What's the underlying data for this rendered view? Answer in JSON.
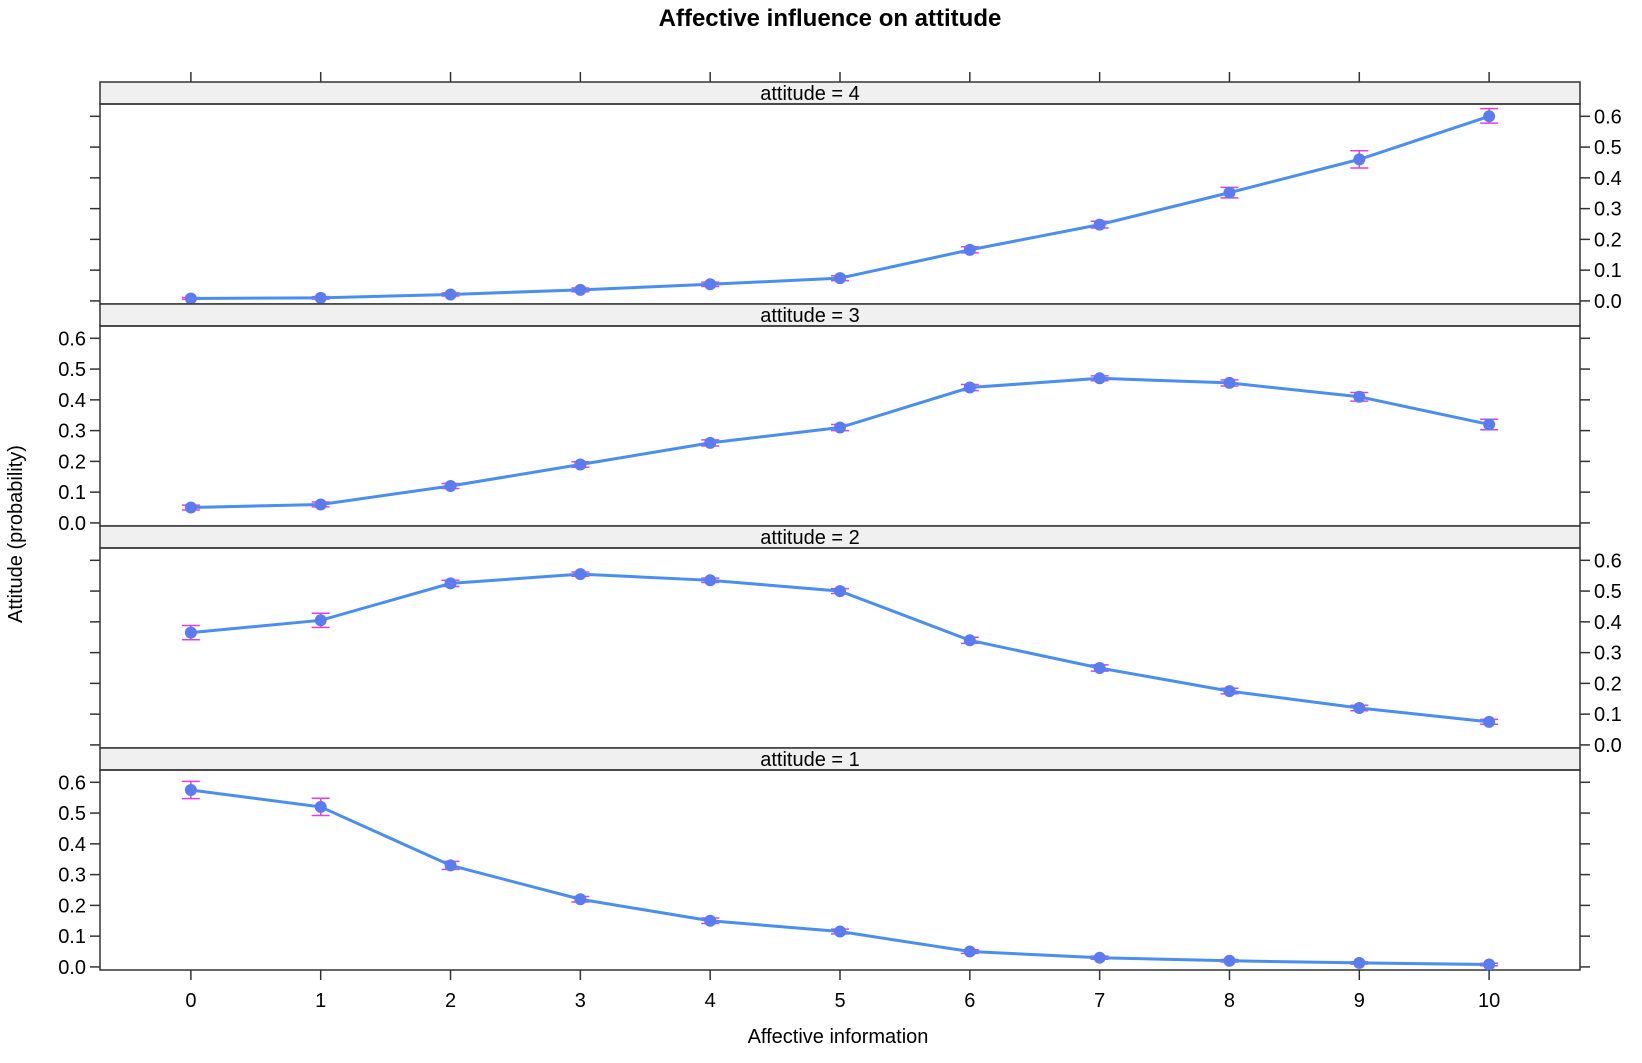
{
  "chart_data": {
    "type": "line",
    "title": "Affective influence on attitude",
    "xlabel": "Affective information",
    "ylabel": "Attitude (probability)",
    "x": [
      0,
      1,
      2,
      3,
      4,
      5,
      6,
      7,
      8,
      9,
      10
    ],
    "x_tick_labels": [
      "0",
      "1",
      "2",
      "3",
      "4",
      "5",
      "6",
      "7",
      "8",
      "9",
      "10"
    ],
    "xlim": [
      -0.7,
      10.7
    ],
    "ylim": [
      -0.01,
      0.64
    ],
    "y_ticks": [
      0.0,
      0.1,
      0.2,
      0.3,
      0.4,
      0.5,
      0.6
    ],
    "y_tick_labels": [
      "0.0",
      "0.1",
      "0.2",
      "0.3",
      "0.4",
      "0.5",
      "0.6"
    ],
    "grid": false,
    "colors": {
      "line": "#4a8ef0",
      "point": "#5a7cf0",
      "error_bar": "#e040e0",
      "strip_bg": "#f0f0f0",
      "frame": "#333333"
    },
    "panels": [
      {
        "label": "attitude = 4",
        "y_axis_side": "right",
        "values": [
          0.008,
          0.01,
          0.021,
          0.036,
          0.054,
          0.074,
          0.166,
          0.248,
          0.352,
          0.46,
          0.6
        ],
        "lower": [
          0.005,
          0.006,
          0.016,
          0.03,
          0.047,
          0.066,
          0.156,
          0.237,
          0.335,
          0.432,
          0.578
        ],
        "upper": [
          0.011,
          0.014,
          0.026,
          0.042,
          0.061,
          0.082,
          0.176,
          0.259,
          0.369,
          0.488,
          0.625
        ]
      },
      {
        "label": "attitude = 3",
        "y_axis_side": "left",
        "values": [
          0.05,
          0.06,
          0.12,
          0.19,
          0.26,
          0.31,
          0.44,
          0.47,
          0.455,
          0.41,
          0.32
        ],
        "lower": [
          0.042,
          0.052,
          0.112,
          0.181,
          0.25,
          0.3,
          0.43,
          0.462,
          0.445,
          0.396,
          0.303
        ],
        "upper": [
          0.058,
          0.068,
          0.128,
          0.199,
          0.27,
          0.32,
          0.45,
          0.478,
          0.465,
          0.424,
          0.337
        ]
      },
      {
        "label": "attitude = 2",
        "y_axis_side": "right",
        "values": [
          0.365,
          0.405,
          0.525,
          0.555,
          0.535,
          0.5,
          0.34,
          0.25,
          0.175,
          0.12,
          0.075
        ],
        "lower": [
          0.342,
          0.382,
          0.515,
          0.548,
          0.528,
          0.492,
          0.33,
          0.24,
          0.166,
          0.111,
          0.067
        ],
        "upper": [
          0.388,
          0.428,
          0.535,
          0.562,
          0.542,
          0.508,
          0.35,
          0.26,
          0.184,
          0.129,
          0.083
        ]
      },
      {
        "label": "attitude = 1",
        "y_axis_side": "left",
        "values": [
          0.575,
          0.52,
          0.33,
          0.22,
          0.15,
          0.115,
          0.05,
          0.03,
          0.02,
          0.013,
          0.008
        ],
        "lower": [
          0.547,
          0.492,
          0.317,
          0.211,
          0.141,
          0.107,
          0.044,
          0.025,
          0.016,
          0.009,
          0.004
        ],
        "upper": [
          0.603,
          0.548,
          0.343,
          0.229,
          0.159,
          0.123,
          0.056,
          0.035,
          0.024,
          0.017,
          0.012
        ]
      }
    ]
  }
}
